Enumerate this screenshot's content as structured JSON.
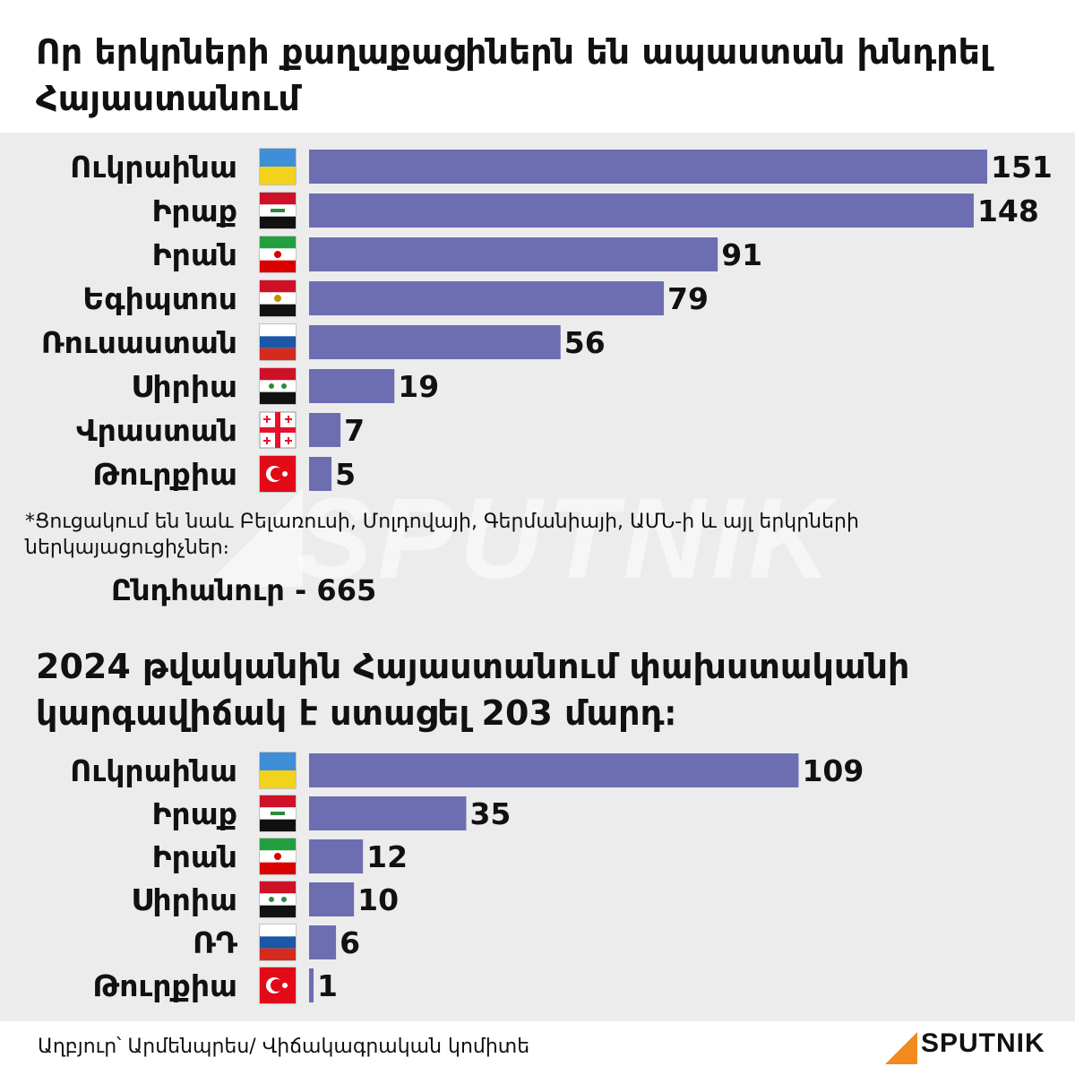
{
  "title_1": "Որ երկրների քաղաքացիներն են ապաստան խնդրել Հայաստանում",
  "title_2": "2024 թվականին Հայաստանում փախստականի կարգավիճակ է ստացել 203 մարդ։",
  "note": "*Ցուցակում են նաև Բելառուսի, Մոլդովայի, Գերմանիայի, ԱՄՆ-ի և այլ երկրների ներկայացուցիչներ։",
  "total": "Ընդհանուր - 665",
  "source": "Աղբյուր՝ Արմենպրես/ Վիճակագրական կոմիտե",
  "brand": "SPUTNIK",
  "watermark": "SPUTNIK",
  "colors": {
    "bar": "#6d6db2",
    "brand_accent": "#f28a1e",
    "background": "#ececec"
  },
  "chart_data": [
    {
      "type": "bar",
      "orientation": "horizontal",
      "title": "Որ երկրների քաղաքացիներն են ապաստան խնդրել Հայաստանում",
      "categories": [
        "Ուկրաինա",
        "Իրաք",
        "Իրան",
        "Եգիպտոս",
        "Ռուսաստան",
        "Սիրիա",
        "Վրաստան",
        "Թուրքիա"
      ],
      "values": [
        151,
        148,
        91,
        79,
        56,
        19,
        7,
        5
      ],
      "flags": [
        "ukraine-flag",
        "iraq-flag",
        "iran-flag",
        "egypt-flag",
        "russia-flag",
        "syria-flag",
        "georgia-flag",
        "turkey-flag"
      ],
      "xlim": [
        0,
        151
      ]
    },
    {
      "type": "bar",
      "orientation": "horizontal",
      "title": "2024 թվականին Հայաստանում փախստականի կարգավիճակ է ստացել 203 մարդ։",
      "categories": [
        "Ուկրաինա",
        "Իրաք",
        "Իրան",
        "Սիրիա",
        "ՌԴ",
        "Թուրքիա"
      ],
      "values": [
        109,
        35,
        12,
        10,
        6,
        1
      ],
      "flags": [
        "ukraine-flag",
        "iraq-flag",
        "iran-flag",
        "syria-flag",
        "russia-flag",
        "turkey-flag"
      ],
      "xlim": [
        0,
        151
      ]
    }
  ]
}
